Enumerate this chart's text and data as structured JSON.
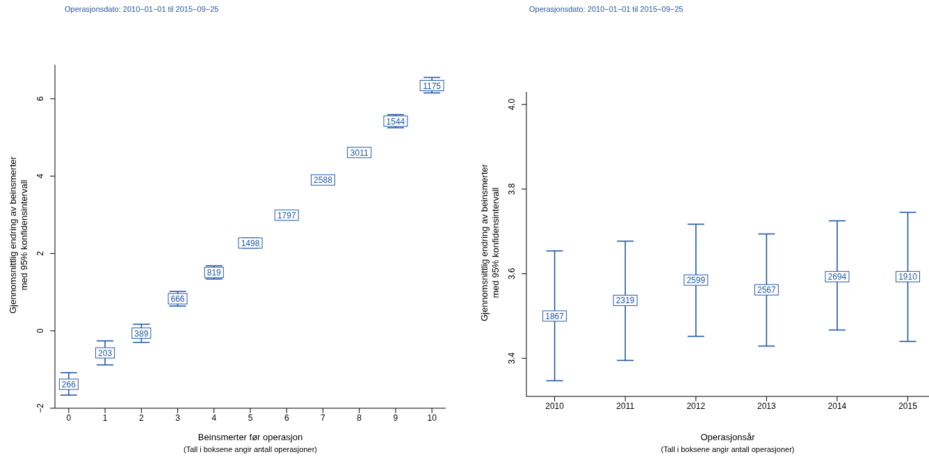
{
  "chart_data": [
    {
      "type": "scatter",
      "subtitle": "Operasjonsdato: 2010−01−01 til 2015−09−25",
      "xlabel": "Beinsmerter før operasjon",
      "ylabel": "Gjennomsnittlig endring av beinsmerter\nmed 95% konfidensintervall",
      "marker": "square",
      "grid": false,
      "annotations": [
        "(Tall i boksene angir antall operasjoner)",
        {
          "text": "266",
          "x": 0,
          "y": -1.38
        },
        {
          "text": "203",
          "x": 1,
          "y": -0.57
        },
        {
          "text": "389",
          "x": 2,
          "y": -0.06
        },
        {
          "text": "666",
          "x": 3,
          "y": 0.83
        },
        {
          "text": "819",
          "x": 4,
          "y": 1.51
        },
        {
          "text": "1498",
          "x": 5,
          "y": 2.27
        },
        {
          "text": "1797",
          "x": 6,
          "y": 2.99
        },
        {
          "text": "2588",
          "x": 7,
          "y": 3.9
        },
        {
          "text": "3011",
          "x": 8,
          "y": 4.61
        },
        {
          "text": "1544",
          "x": 9,
          "y": 5.42
        },
        {
          "text": "1175",
          "x": 10,
          "y": 6.34
        }
      ],
      "x": [
        0,
        1,
        2,
        3,
        4,
        5,
        6,
        7,
        8,
        9,
        10
      ],
      "series": [
        {
          "color": "#2358a6",
          "values": [
            -1.38,
            -0.57,
            -0.06,
            0.83,
            1.51,
            2.27,
            2.99,
            3.9,
            4.61,
            5.42,
            6.34
          ],
          "errors": [
            [
              -1.66,
              -1.08
            ],
            [
              -0.88,
              -0.26
            ],
            [
              -0.3,
              0.17
            ],
            [
              0.64,
              1.02
            ],
            [
              1.34,
              1.68
            ],
            [
              2.14,
              2.4
            ],
            [
              2.87,
              3.09
            ],
            [
              3.81,
              3.98
            ],
            [
              4.52,
              4.69
            ],
            [
              5.25,
              5.59
            ],
            [
              6.15,
              6.55
            ]
          ]
        }
      ],
      "xlim": [
        -0.38,
        10.38
      ],
      "xticks": [
        0,
        1,
        2,
        3,
        4,
        5,
        6,
        7,
        8,
        9,
        10
      ],
      "ylim": [
        -2,
        6.88
      ],
      "yticks": [
        -2,
        0,
        2,
        4,
        6
      ]
    },
    {
      "type": "scatter",
      "subtitle": "Operasjonsdato: 2010−01−01 til 2015−09−25",
      "xlabel": "Operasjonsår",
      "ylabel": "Gjennomsnittlig endring av beinsmerter\nmed 95% konfidensintervall",
      "marker": "square",
      "grid": false,
      "annotations": [
        "(Tall i boksene angir antall operasjoner)",
        {
          "text": "1867",
          "x": 2010,
          "y": 3.5
        },
        {
          "text": "2319",
          "x": 2011,
          "y": 3.537
        },
        {
          "text": "2599",
          "x": 2012,
          "y": 3.585
        },
        {
          "text": "2567",
          "x": 2013,
          "y": 3.562
        },
        {
          "text": "2694",
          "x": 2014,
          "y": 3.593
        },
        {
          "text": "1910",
          "x": 2015,
          "y": 3.593
        }
      ],
      "x": [
        2010,
        2011,
        2012,
        2013,
        2014,
        2015
      ],
      "series": [
        {
          "color": "#2358a6",
          "values": [
            3.5,
            3.537,
            3.585,
            3.562,
            3.593,
            3.593
          ],
          "errors": [
            [
              3.347,
              3.654
            ],
            [
              3.395,
              3.677
            ],
            [
              3.452,
              3.717
            ],
            [
              3.429,
              3.694
            ],
            [
              3.467,
              3.725
            ],
            [
              3.44,
              3.745
            ]
          ]
        }
      ],
      "xlim": [
        2009.6,
        2015.3
      ],
      "xticks": [
        2010,
        2011,
        2012,
        2013,
        2014,
        2015
      ],
      "ylim": [
        3.31,
        4.03
      ],
      "yticks": [
        3.4,
        3.6,
        3.8,
        {
          "value": 4.0,
          "label": "4.0"
        }
      ]
    }
  ]
}
